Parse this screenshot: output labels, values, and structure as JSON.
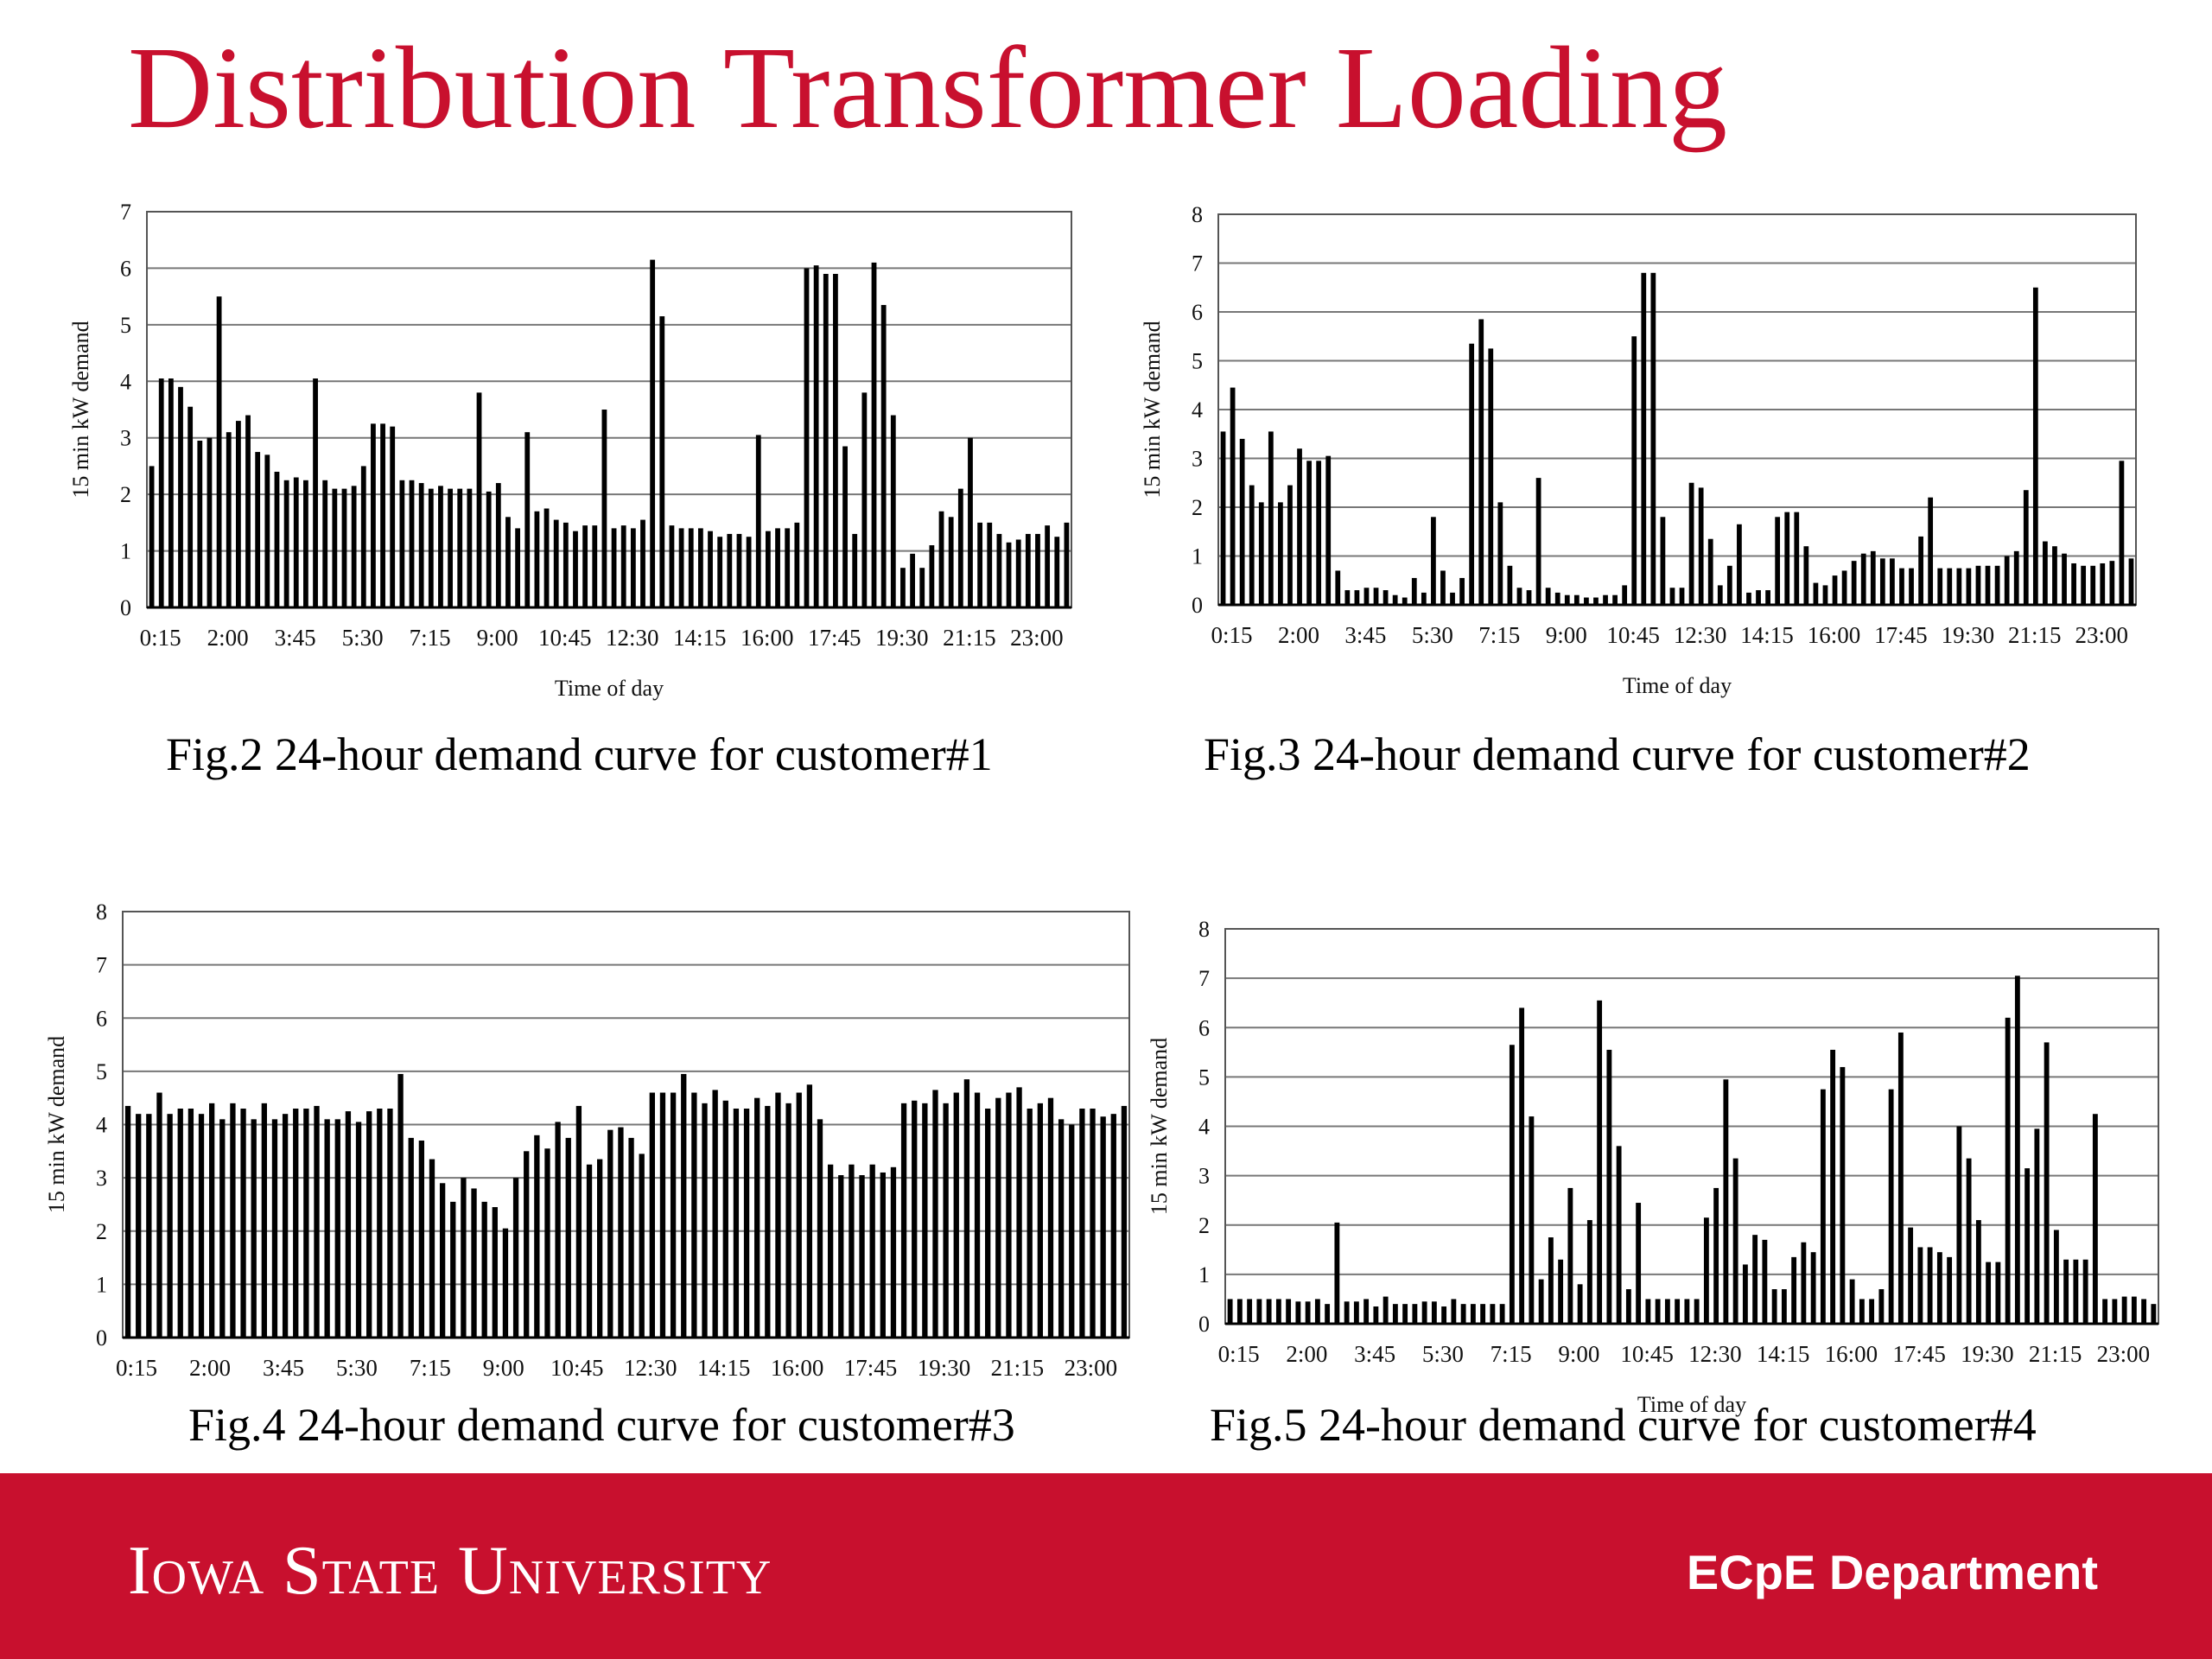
{
  "slide": {
    "title": "Distribution Transformer Loading",
    "footer_logo": "Iowa State University",
    "footer_dept": "ECpE Department"
  },
  "captions": [
    "Fig.2 24-hour demand curve for customer#1",
    "Fig.3 24-hour demand curve for customer#2",
    "Fig.4 24-hour demand curve for customer#3",
    "Fig.5 24-hour demand curve for customer#4"
  ],
  "chart_data": [
    {
      "type": "bar",
      "title": "",
      "xlabel": "Time of day",
      "ylabel": "15 min kW demand",
      "ylim": [
        0,
        7
      ],
      "yticks": [
        0,
        1,
        2,
        3,
        4,
        5,
        6,
        7
      ],
      "grid": true,
      "xtick_labels": [
        "0:15",
        "2:00",
        "3:45",
        "5:30",
        "7:15",
        "9:00",
        "10:45",
        "12:30",
        "14:15",
        "16:00",
        "17:45",
        "19:30",
        "21:15",
        "23:00"
      ],
      "values": [
        2.5,
        4.05,
        4.05,
        3.9,
        3.55,
        2.95,
        3.0,
        5.5,
        3.1,
        3.3,
        3.4,
        2.75,
        2.7,
        2.4,
        2.25,
        2.3,
        2.25,
        4.05,
        2.25,
        2.1,
        2.1,
        2.15,
        2.5,
        3.25,
        3.25,
        3.2,
        2.25,
        2.25,
        2.2,
        2.1,
        2.15,
        2.1,
        2.1,
        2.1,
        3.8,
        2.05,
        2.2,
        1.6,
        1.4,
        3.1,
        1.7,
        1.75,
        1.55,
        1.5,
        1.35,
        1.45,
        1.45,
        3.5,
        1.4,
        1.45,
        1.4,
        1.55,
        6.15,
        5.15,
        1.45,
        1.4,
        1.4,
        1.4,
        1.35,
        1.25,
        1.3,
        1.3,
        1.25,
        3.05,
        1.35,
        1.4,
        1.4,
        1.5,
        6.0,
        6.05,
        5.9,
        5.9,
        2.85,
        1.3,
        3.8,
        6.1,
        5.35,
        3.4,
        0.7,
        0.95,
        0.7,
        1.1,
        1.7,
        1.6,
        2.1,
        3.0,
        1.5,
        1.5,
        1.3,
        1.15,
        1.2,
        1.3,
        1.3,
        1.45,
        1.25,
        1.5
      ]
    },
    {
      "type": "bar",
      "title": "",
      "xlabel": "Time of day",
      "ylabel": "15 min kW demand",
      "ylim": [
        0,
        8
      ],
      "yticks": [
        0,
        1,
        2,
        3,
        4,
        5,
        6,
        7,
        8
      ],
      "grid": true,
      "xtick_labels": [
        "0:15",
        "2:00",
        "3:45",
        "5:30",
        "7:15",
        "9:00",
        "10:45",
        "12:30",
        "14:15",
        "16:00",
        "17:45",
        "19:30",
        "21:15",
        "23:00"
      ],
      "values": [
        3.55,
        4.45,
        3.4,
        2.45,
        2.1,
        3.55,
        2.1,
        2.45,
        3.2,
        2.95,
        2.95,
        3.05,
        0.7,
        0.3,
        0.3,
        0.35,
        0.35,
        0.3,
        0.2,
        0.15,
        0.55,
        0.25,
        1.8,
        0.7,
        0.25,
        0.55,
        5.35,
        5.85,
        5.25,
        2.1,
        0.8,
        0.35,
        0.3,
        2.6,
        0.35,
        0.25,
        0.2,
        0.2,
        0.15,
        0.15,
        0.2,
        0.2,
        0.4,
        5.5,
        6.8,
        6.8,
        1.8,
        0.35,
        0.35,
        2.5,
        2.4,
        1.35,
        0.4,
        0.8,
        1.65,
        0.25,
        0.3,
        0.3,
        1.8,
        1.9,
        1.9,
        1.2,
        0.45,
        0.4,
        0.6,
        0.7,
        0.9,
        1.05,
        1.1,
        0.95,
        0.95,
        0.75,
        0.75,
        1.4,
        2.2,
        0.75,
        0.75,
        0.75,
        0.75,
        0.8,
        0.8,
        0.8,
        1.0,
        1.1,
        2.35,
        6.5,
        1.3,
        1.2,
        1.05,
        0.85,
        0.8,
        0.8,
        0.85,
        0.9,
        2.95,
        0.95
      ]
    },
    {
      "type": "bar",
      "title": "",
      "xlabel": "",
      "ylabel": "15 min kW demand",
      "ylim": [
        0,
        8
      ],
      "yticks": [
        0,
        1,
        2,
        3,
        4,
        5,
        6,
        7,
        8
      ],
      "grid": true,
      "xtick_labels": [
        "0:15",
        "2:00",
        "3:45",
        "5:30",
        "7:15",
        "9:00",
        "10:45",
        "12:30",
        "14:15",
        "16:00",
        "17:45",
        "19:30",
        "21:15",
        "23:00"
      ],
      "values": [
        4.35,
        4.2,
        4.2,
        4.6,
        4.2,
        4.3,
        4.3,
        4.2,
        4.4,
        4.1,
        4.4,
        4.3,
        4.1,
        4.4,
        4.1,
        4.2,
        4.3,
        4.3,
        4.35,
        4.1,
        4.1,
        4.25,
        4.05,
        4.25,
        4.3,
        4.3,
        4.95,
        3.75,
        3.7,
        3.35,
        2.9,
        2.55,
        3.0,
        2.8,
        2.55,
        2.45,
        2.05,
        3.0,
        3.5,
        3.8,
        3.55,
        4.05,
        3.75,
        4.35,
        3.25,
        3.35,
        3.9,
        3.95,
        3.75,
        3.45,
        4.6,
        4.6,
        4.6,
        4.95,
        4.6,
        4.4,
        4.65,
        4.45,
        4.3,
        4.3,
        4.5,
        4.35,
        4.6,
        4.4,
        4.6,
        4.75,
        4.1,
        3.25,
        3.05,
        3.25,
        3.05,
        3.25,
        3.1,
        3.2,
        4.4,
        4.45,
        4.4,
        4.65,
        4.4,
        4.6,
        4.85,
        4.6,
        4.3,
        4.5,
        4.6,
        4.7,
        4.3,
        4.4,
        4.5,
        4.1,
        4.0,
        4.3,
        4.3,
        4.15,
        4.2,
        4.35
      ]
    },
    {
      "type": "bar",
      "title": "",
      "xlabel": "Time of day",
      "ylabel": "15 min kW demand",
      "ylim": [
        0,
        8
      ],
      "yticks": [
        0,
        1,
        2,
        3,
        4,
        5,
        6,
        7,
        8
      ],
      "grid": true,
      "xtick_labels": [
        "0:15",
        "2:00",
        "3:45",
        "5:30",
        "7:15",
        "9:00",
        "10:45",
        "12:30",
        "14:15",
        "16:00",
        "17:45",
        "19:30",
        "21:15",
        "23:00"
      ],
      "values": [
        0.5,
        0.5,
        0.5,
        0.5,
        0.5,
        0.5,
        0.5,
        0.45,
        0.45,
        0.5,
        0.4,
        2.05,
        0.45,
        0.45,
        0.5,
        0.35,
        0.55,
        0.4,
        0.4,
        0.4,
        0.45,
        0.45,
        0.35,
        0.5,
        0.4,
        0.4,
        0.4,
        0.4,
        0.4,
        5.65,
        6.4,
        4.2,
        0.9,
        1.75,
        1.3,
        2.75,
        0.8,
        2.1,
        6.55,
        5.55,
        3.6,
        0.7,
        2.45,
        0.5,
        0.5,
        0.5,
        0.5,
        0.5,
        0.5,
        2.15,
        2.75,
        4.95,
        3.35,
        1.2,
        1.8,
        1.7,
        0.7,
        0.7,
        1.35,
        1.65,
        1.45,
        4.75,
        5.55,
        5.2,
        0.9,
        0.5,
        0.5,
        0.7,
        4.75,
        5.9,
        1.95,
        1.55,
        1.55,
        1.45,
        1.35,
        4.0,
        3.35,
        2.1,
        1.25,
        1.25,
        6.2,
        7.05,
        3.15,
        3.95,
        5.7,
        1.9,
        1.3,
        1.3,
        1.3,
        4.25,
        0.5,
        0.5,
        0.55,
        0.55,
        0.5,
        0.4
      ]
    }
  ]
}
